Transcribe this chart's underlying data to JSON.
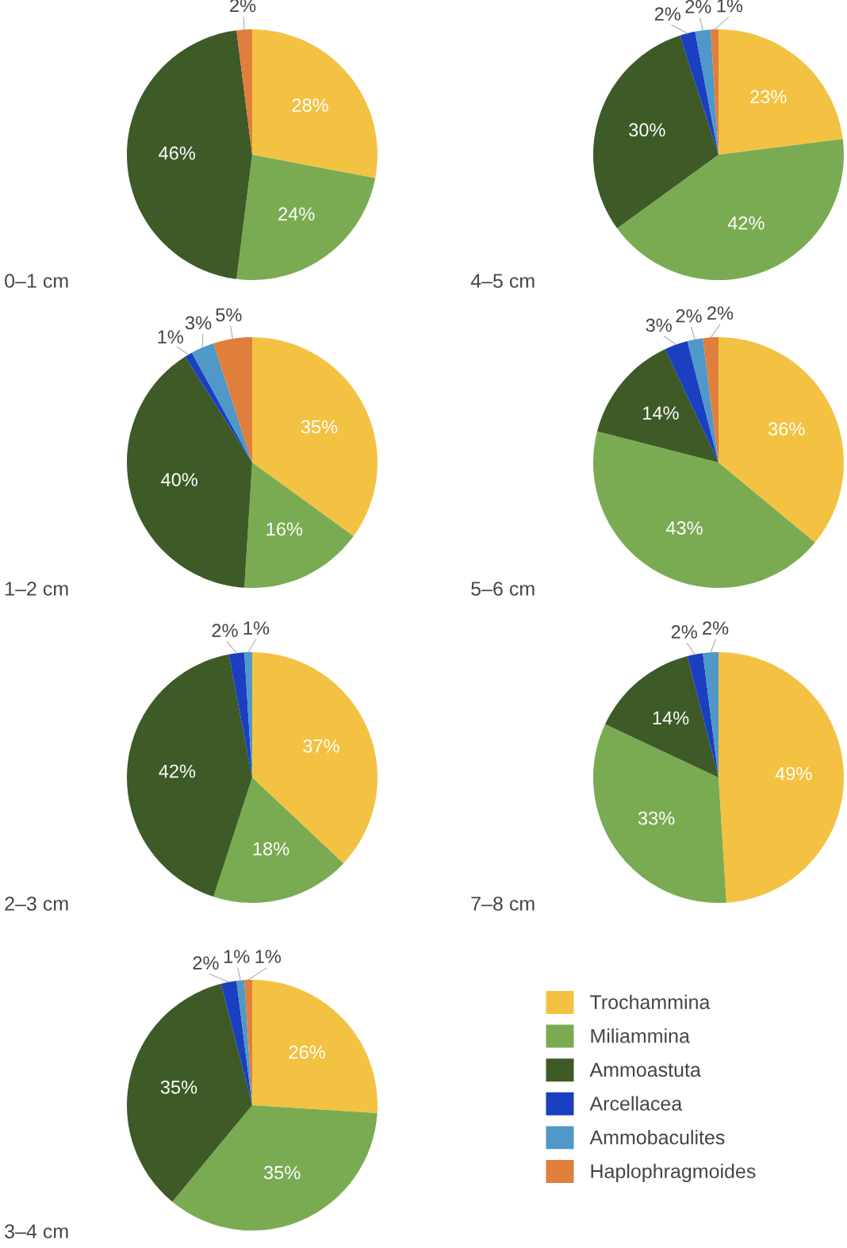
{
  "chart_data": [
    {
      "type": "pie",
      "title": "0–1 cm",
      "categories": [
        "Trochammina",
        "Miliammina",
        "Ammoastuta",
        "Arcellacea",
        "Ammobaculites",
        "Haplophragmoides"
      ],
      "values": [
        28,
        24,
        46,
        0,
        0,
        2
      ],
      "colors": [
        "#f4c242",
        "#7aab52",
        "#3d5a27",
        "#1a3fc0",
        "#4f98c8",
        "#e07e3c"
      ],
      "value_labels": [
        "28%",
        "24%",
        "46%",
        null,
        null,
        "2%"
      ],
      "legend": "right"
    },
    {
      "type": "pie",
      "title": "4–5 cm",
      "categories": [
        null,
        null,
        null,
        null,
        null,
        null
      ],
      "values": [
        23,
        42,
        30,
        2,
        2,
        1
      ],
      "colors": [
        "#f4c242",
        "#7aab52",
        "#3d5a27",
        "#1a3fc0",
        "#4f98c8",
        "#e07e3c"
      ],
      "value_labels": [
        "23%",
        "42%",
        "30%",
        "2%",
        "2%",
        "1%"
      ]
    },
    {
      "type": "pie",
      "title": "1–2 cm",
      "categories": [
        null,
        null,
        null,
        null,
        null,
        null
      ],
      "values": [
        35,
        16,
        40,
        1,
        3,
        5
      ],
      "colors": [
        "#f4c242",
        "#7aab52",
        "#3d5a27",
        "#1a3fc0",
        "#4f98c8",
        "#e07e3c"
      ],
      "value_labels": [
        "35%",
        "16%",
        "40%",
        "1%",
        "3%",
        "5%"
      ]
    },
    {
      "type": "pie",
      "title": "5–6 cm",
      "categories": [
        null,
        null,
        null,
        null,
        null,
        null
      ],
      "values": [
        36,
        43,
        14,
        3,
        2,
        2
      ],
      "colors": [
        "#f4c242",
        "#7aab52",
        "#3d5a27",
        "#1a3fc0",
        "#4f98c8",
        "#e07e3c"
      ],
      "value_labels": [
        "36%",
        "43%",
        "14%",
        "3%",
        "2%",
        "2%"
      ]
    },
    {
      "type": "pie",
      "title": "2–3 cm",
      "categories": [
        null,
        null,
        null,
        null,
        null,
        null
      ],
      "values": [
        37,
        18,
        42,
        2,
        1,
        0
      ],
      "colors": [
        "#f4c242",
        "#7aab52",
        "#3d5a27",
        "#1a3fc0",
        "#4f98c8",
        "#e07e3c"
      ],
      "value_labels": [
        "37%",
        "18%",
        "42%",
        "2%",
        "1%",
        null
      ]
    },
    {
      "type": "pie",
      "title": "7–8 cm",
      "categories": [
        null,
        null,
        null,
        null,
        null,
        null
      ],
      "values": [
        49,
        33,
        14,
        2,
        2,
        0
      ],
      "colors": [
        "#f4c242",
        "#7aab52",
        "#3d5a27",
        "#1a3fc0",
        "#4f98c8",
        "#e07e3c"
      ],
      "value_labels": [
        "49%",
        "33%",
        "14%",
        "2%",
        "2%",
        null
      ]
    },
    {
      "type": "pie",
      "title": "3–4 cm",
      "categories": [
        null,
        null,
        null,
        null,
        null,
        null
      ],
      "values": [
        26,
        35,
        35,
        2,
        1,
        1
      ],
      "colors": [
        "#f4c242",
        "#7aab52",
        "#3d5a27",
        "#1a3fc0",
        "#4f98c8",
        "#e07e3c"
      ],
      "value_labels": [
        "26%",
        "35%",
        "35%",
        "2%",
        "1%",
        "1%"
      ]
    }
  ]
}
